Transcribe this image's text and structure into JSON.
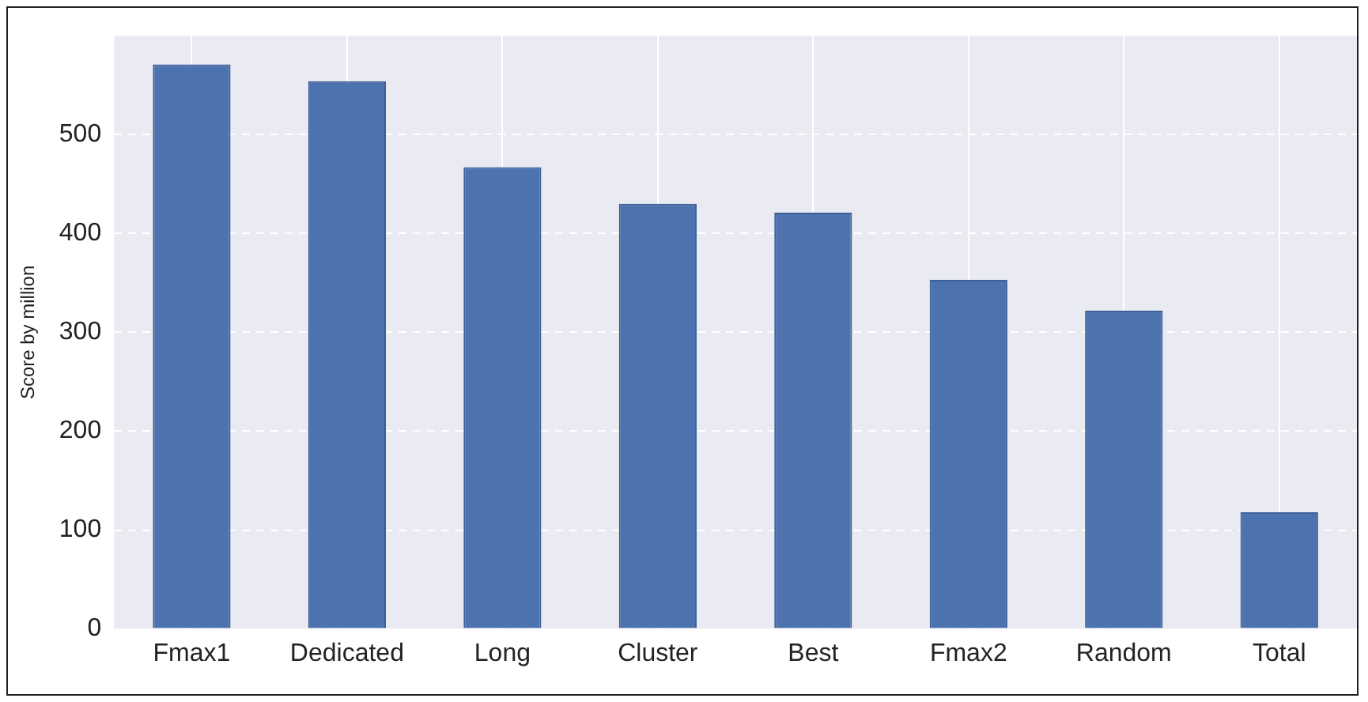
{
  "chart_data": {
    "type": "bar",
    "ylabel": "Score by million",
    "categories": [
      "Fmax1",
      "Dedicated",
      "Long",
      "Cluster",
      "Best",
      "Fmax2",
      "Random",
      "Total"
    ],
    "values": [
      571,
      554,
      467,
      430,
      421,
      353,
      322,
      118
    ],
    "color": "#4c72b0",
    "ylim": [
      0,
      600
    ],
    "yticks": [
      0,
      100,
      200,
      300,
      400,
      500
    ],
    "grid": true
  }
}
